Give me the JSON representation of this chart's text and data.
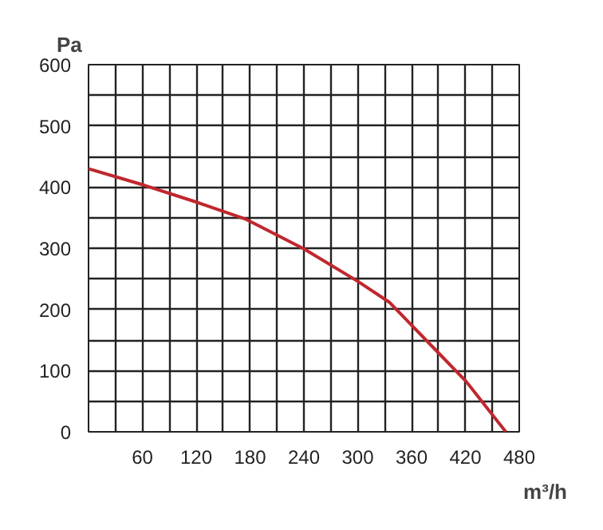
{
  "chart_data": {
    "type": "line",
    "ylabel": "Pa",
    "xlabel": "m³/h",
    "series": [
      {
        "color": "#c0272d",
        "x": [
          0,
          62,
          119,
          176,
          240,
          300,
          335,
          386,
          421,
          465
        ],
        "values": [
          430,
          403,
          376,
          347,
          299,
          246,
          212,
          135,
          82,
          0
        ]
      }
    ],
    "xlim": [
      0,
      480
    ],
    "ylim": [
      0,
      600
    ],
    "xticks": [
      {
        "value": 0,
        "label": null
      },
      {
        "value": 30,
        "label": null
      },
      60,
      {
        "value": 90,
        "label": null
      },
      120,
      {
        "value": 150,
        "label": null
      },
      180,
      {
        "value": 210,
        "label": null
      },
      240,
      {
        "value": 270,
        "label": null
      },
      300,
      {
        "value": 330,
        "label": null
      },
      360,
      {
        "value": 390,
        "label": null
      },
      420,
      {
        "value": 450,
        "label": null
      },
      480
    ],
    "yticks": [
      0,
      {
        "value": 50,
        "label": null
      },
      100,
      {
        "value": 150,
        "label": null
      },
      200,
      {
        "value": 250,
        "label": null
      },
      300,
      {
        "value": 350,
        "label": null
      },
      400,
      {
        "value": 450,
        "label": null
      },
      500,
      {
        "value": 550,
        "label": null
      },
      600
    ],
    "grid": true,
    "marker": "none",
    "line_style": "solid"
  }
}
